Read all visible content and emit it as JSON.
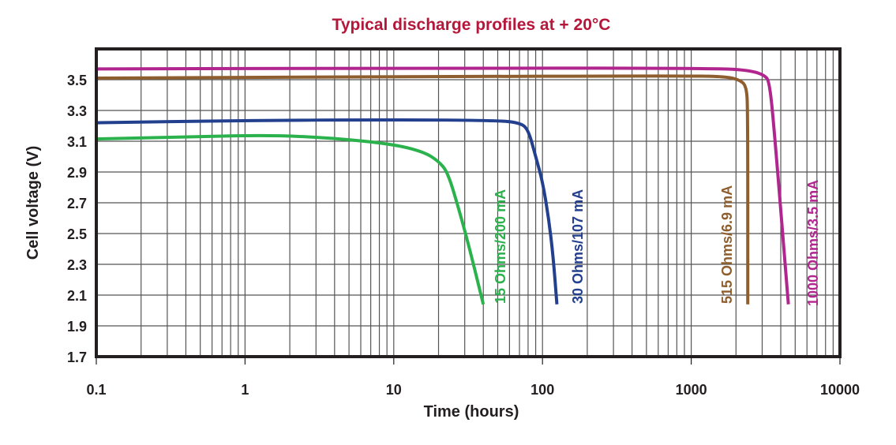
{
  "chart_data": {
    "type": "line",
    "title": "Typical discharge profiles at + 20°C",
    "xlabel": "Time (hours)",
    "ylabel": "Cell voltage (V)",
    "xscale": "log",
    "xlim": [
      0.1,
      10000
    ],
    "ylim": [
      1.7,
      3.7
    ],
    "grid": true,
    "xticks": [
      "0.1",
      "1",
      "10",
      "100",
      "1000",
      "10000"
    ],
    "xtick_values": [
      0.1,
      1,
      10,
      100,
      1000,
      10000
    ],
    "yticks": [
      "1.7",
      "1.9",
      "2.1",
      "2.3",
      "2.5",
      "2.7",
      "2.9",
      "3.1",
      "3.3",
      "3.5"
    ],
    "ytick_values": [
      1.7,
      1.9,
      2.1,
      2.3,
      2.5,
      2.7,
      2.9,
      3.1,
      3.3,
      3.5
    ],
    "series": [
      {
        "name": "15 Ohms/200 mA",
        "color": "#2bb24c",
        "x": [
          0.1,
          0.5,
          1.5,
          4,
          10,
          16,
          20,
          23,
          27,
          32,
          40
        ],
        "y": [
          3.115,
          3.13,
          3.14,
          3.12,
          3.08,
          3.03,
          2.97,
          2.9,
          2.68,
          2.42,
          2.04
        ]
      },
      {
        "name": "30 Ohms/107 mA",
        "color": "#23408f",
        "x": [
          0.1,
          1,
          10,
          50,
          70,
          80,
          90,
          100,
          110,
          118,
          125
        ],
        "y": [
          3.22,
          3.235,
          3.24,
          3.235,
          3.22,
          3.18,
          3.0,
          2.84,
          2.6,
          2.35,
          2.04
        ]
      },
      {
        "name": "515 Ohms/6.9 mA",
        "color": "#8f5e2e",
        "x": [
          0.1,
          10,
          1000,
          1700,
          2100,
          2350,
          2400,
          2400
        ],
        "y": [
          3.51,
          3.52,
          3.525,
          3.52,
          3.5,
          3.46,
          3.3,
          2.04
        ]
      },
      {
        "name": "1000 Ohms/3.5 mA",
        "color": "#b0268e",
        "x": [
          0.1,
          10,
          1500,
          2500,
          3100,
          3350,
          3600,
          4500
        ],
        "y": [
          3.57,
          3.575,
          3.575,
          3.56,
          3.53,
          3.49,
          3.2,
          2.04
        ]
      }
    ]
  }
}
